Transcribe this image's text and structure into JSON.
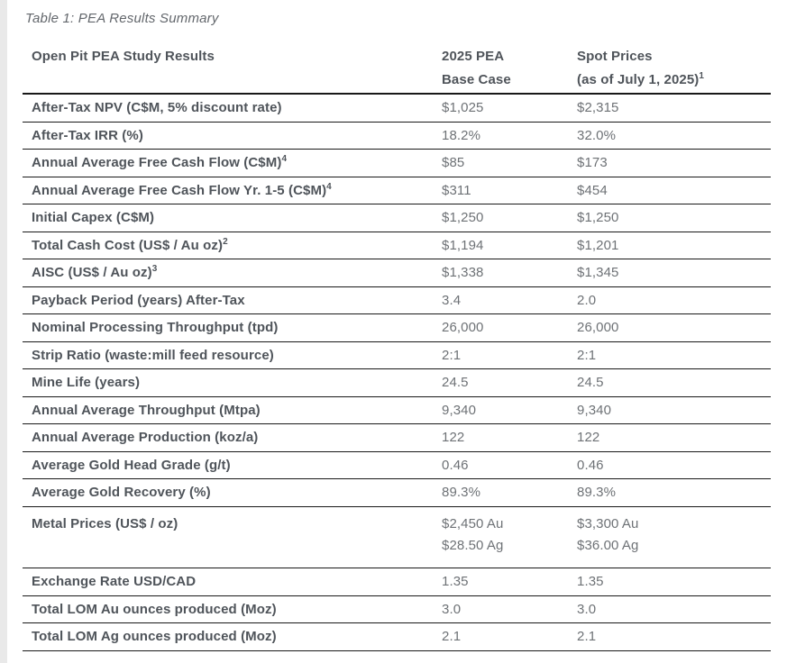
{
  "caption": "Table 1: PEA Results Summary",
  "colors": {
    "caption_text": "#63676c",
    "label_text": "#4f545a",
    "value_text": "#6e7276",
    "rule": "#191919",
    "left_strip": "#e9e9e9",
    "page_bg": "#ffffff"
  },
  "table": {
    "header": {
      "results_label": "Open Pit PEA Study Results",
      "base_case_line1": "2025 PEA",
      "base_case_line2": "Base Case",
      "spot_line1": "Spot Prices",
      "spot_line2": "(as of July 1, 2025)",
      "spot_sup": "1"
    },
    "rows": [
      {
        "label": "After-Tax NPV (C$M, 5% discount rate)",
        "sup": "",
        "base": [
          "$1,025"
        ],
        "spot": [
          "$2,315"
        ]
      },
      {
        "label": "After-Tax IRR (%)",
        "sup": "",
        "base": [
          "18.2%"
        ],
        "spot": [
          "32.0%"
        ]
      },
      {
        "label": "Annual Average Free Cash Flow (C$M)",
        "sup": "4",
        "base": [
          "$85"
        ],
        "spot": [
          "$173"
        ]
      },
      {
        "label": "Annual Average Free Cash Flow Yr. 1-5 (C$M)",
        "sup": "4",
        "base": [
          "$311"
        ],
        "spot": [
          "$454"
        ]
      },
      {
        "label": "Initial Capex (C$M)",
        "sup": "",
        "base": [
          "$1,250"
        ],
        "spot": [
          "$1,250"
        ]
      },
      {
        "label": "Total Cash Cost (US$ / Au oz)",
        "sup": "2",
        "base": [
          "$1,194"
        ],
        "spot": [
          "$1,201"
        ]
      },
      {
        "label": "AISC (US$ / Au oz)",
        "sup": "3",
        "base": [
          "$1,338"
        ],
        "spot": [
          "$1,345"
        ]
      },
      {
        "label": "Payback Period (years) After-Tax",
        "sup": "",
        "base": [
          "3.4"
        ],
        "spot": [
          "2.0"
        ]
      },
      {
        "label": "Nominal Processing Throughput (tpd)",
        "sup": "",
        "base": [
          "26,000"
        ],
        "spot": [
          "26,000"
        ]
      },
      {
        "label": "Strip Ratio (waste:mill feed resource)",
        "sup": "",
        "base": [
          "2:1"
        ],
        "spot": [
          "2:1"
        ]
      },
      {
        "label": "Mine Life (years)",
        "sup": "",
        "base": [
          "24.5"
        ],
        "spot": [
          "24.5"
        ]
      },
      {
        "label": "Annual Average Throughput (Mtpa)",
        "sup": "",
        "base": [
          "9,340"
        ],
        "spot": [
          "9,340"
        ]
      },
      {
        "label": "Annual Average Production (koz/a)",
        "sup": "",
        "base": [
          "122"
        ],
        "spot": [
          "122"
        ]
      },
      {
        "label": "Average Gold Head Grade (g/t)",
        "sup": "",
        "base": [
          "0.46"
        ],
        "spot": [
          "0.46"
        ]
      },
      {
        "label": "Average Gold Recovery (%)",
        "sup": "",
        "base": [
          "89.3%"
        ],
        "spot": [
          "89.3%"
        ]
      },
      {
        "label": "Metal Prices (US$ / oz)",
        "sup": "",
        "base": [
          "$2,450 Au",
          "$28.50 Ag"
        ],
        "spot": [
          "$3,300 Au",
          "$36.00 Ag"
        ]
      },
      {
        "label": "Exchange Rate USD/CAD",
        "sup": "",
        "base": [
          "1.35"
        ],
        "spot": [
          "1.35"
        ]
      },
      {
        "label": "Total LOM Au ounces produced (Moz)",
        "sup": "",
        "base": [
          "3.0"
        ],
        "spot": [
          "3.0"
        ]
      },
      {
        "label": "Total LOM Ag ounces produced (Moz)",
        "sup": "",
        "base": [
          "2.1"
        ],
        "spot": [
          "2.1"
        ]
      }
    ]
  }
}
